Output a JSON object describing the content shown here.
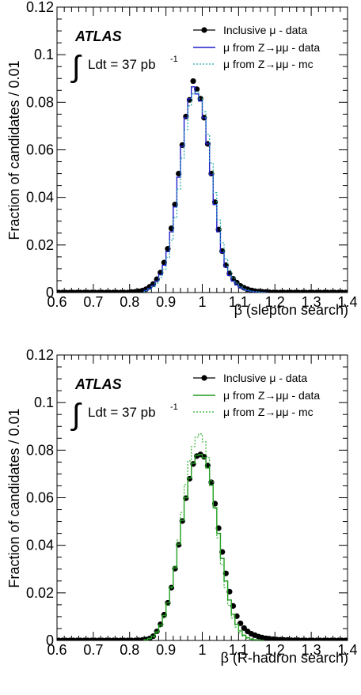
{
  "chart_data": [
    {
      "type": "line",
      "panel": "top",
      "experiment_label": "ATLAS",
      "luminosity_label": "Ldt = 37 pb",
      "luminosity_exponent": "-1",
      "xlabel": "β (slepton search)",
      "ylabel": "Fraction of candidates / 0.01",
      "xlim": [
        0.6,
        1.4
      ],
      "ylim": [
        0,
        0.12
      ],
      "x_ticks": [
        "0.6",
        "0.7",
        "0.8",
        "0.9",
        "1",
        "1.1",
        "1.2",
        "1.3",
        "1.4"
      ],
      "y_ticks": [
        "0",
        "0.02",
        "0.04",
        "0.06",
        "0.08",
        "0.1",
        "0.12"
      ],
      "legend_position": "top-right",
      "series": [
        {
          "name": "Inclusive μ - data",
          "style": "markers",
          "color": "#000000",
          "x": [
            0.605,
            0.615,
            0.625,
            0.635,
            0.645,
            0.655,
            0.665,
            0.675,
            0.685,
            0.695,
            0.705,
            0.715,
            0.725,
            0.735,
            0.745,
            0.755,
            0.765,
            0.775,
            0.785,
            0.795,
            0.805,
            0.815,
            0.825,
            0.835,
            0.845,
            0.855,
            0.865,
            0.875,
            0.885,
            0.895,
            0.905,
            0.915,
            0.925,
            0.935,
            0.945,
            0.955,
            0.965,
            0.975,
            0.985,
            0.995,
            1.005,
            1.015,
            1.025,
            1.035,
            1.045,
            1.055,
            1.065,
            1.075,
            1.085,
            1.095,
            1.105,
            1.115,
            1.125,
            1.135,
            1.145,
            1.155,
            1.165,
            1.175,
            1.185,
            1.195,
            1.205,
            1.215,
            1.225,
            1.235,
            1.245,
            1.255,
            1.265,
            1.275,
            1.285,
            1.295,
            1.305,
            1.315,
            1.325,
            1.335,
            1.345,
            1.355,
            1.365,
            1.375,
            1.385,
            1.395
          ],
          "values": [
            0,
            0,
            0,
            0,
            0,
            0,
            0,
            0,
            0,
            0,
            0,
            0,
            0,
            0,
            0,
            0,
            0,
            0,
            0,
            0,
            0.0002,
            0.0003,
            0.0005,
            0.0008,
            0.0014,
            0.0024,
            0.0036,
            0.0056,
            0.0084,
            0.0126,
            0.0184,
            0.027,
            0.037,
            0.05,
            0.062,
            0.074,
            0.081,
            0.0889,
            0.0855,
            0.0815,
            0.0735,
            0.0625,
            0.05,
            0.038,
            0.0265,
            0.0174,
            0.0115,
            0.008,
            0.0058,
            0.0042,
            0.0028,
            0.002,
            0.0014,
            0.0009,
            0.0006,
            0.0004,
            0.0003,
            0.0002,
            0.0001,
            0,
            0,
            0,
            0,
            0,
            0,
            0,
            0,
            0,
            0,
            0,
            0,
            0,
            0,
            0,
            0,
            0,
            0,
            0,
            0,
            0
          ]
        },
        {
          "name": "μ from Z→μμ - data",
          "style": "step-solid",
          "color": "#1f1fcc",
          "x": [
            0.845,
            0.855,
            0.865,
            0.875,
            0.885,
            0.895,
            0.905,
            0.915,
            0.925,
            0.935,
            0.945,
            0.955,
            0.965,
            0.975,
            0.985,
            0.995,
            1.005,
            1.015,
            1.025,
            1.035,
            1.045,
            1.055,
            1.065,
            1.075,
            1.085,
            1.095,
            1.105,
            1.115,
            1.125,
            1.135,
            1.145,
            1.155,
            1.165,
            1.175
          ],
          "values": [
            0.0009,
            0.0018,
            0.003,
            0.0048,
            0.0075,
            0.0115,
            0.0172,
            0.0255,
            0.036,
            0.0485,
            0.0615,
            0.0735,
            0.0815,
            0.0865,
            0.0835,
            0.0805,
            0.0735,
            0.0625,
            0.0495,
            0.037,
            0.0255,
            0.0168,
            0.0108,
            0.0072,
            0.0048,
            0.0032,
            0.002,
            0.0013,
            0.0008,
            0.0005,
            0.0003,
            0.0002,
            0.0001,
            0
          ]
        },
        {
          "name": "μ from Z→μμ - mc",
          "style": "step-dotted",
          "color": "#1fa6a6",
          "x": [
            0.845,
            0.855,
            0.865,
            0.875,
            0.885,
            0.895,
            0.905,
            0.915,
            0.925,
            0.935,
            0.945,
            0.955,
            0.965,
            0.975,
            0.985,
            0.995,
            1.005,
            1.015,
            1.025,
            1.035,
            1.045,
            1.055,
            1.065,
            1.075,
            1.085,
            1.095,
            1.105,
            1.115,
            1.125,
            1.135,
            1.145,
            1.155,
            1.165,
            1.175
          ],
          "values": [
            0.0007,
            0.0014,
            0.0025,
            0.004,
            0.0064,
            0.0098,
            0.0148,
            0.022,
            0.0315,
            0.0435,
            0.0565,
            0.0685,
            0.0785,
            0.0835,
            0.0845,
            0.0815,
            0.076,
            0.0665,
            0.0545,
            0.042,
            0.0305,
            0.021,
            0.0142,
            0.0094,
            0.0062,
            0.004,
            0.0026,
            0.0016,
            0.001,
            0.0006,
            0.0004,
            0.0002,
            0.0001,
            0
          ]
        }
      ]
    },
    {
      "type": "line",
      "panel": "bottom",
      "experiment_label": "ATLAS",
      "luminosity_label": "Ldt = 37 pb",
      "luminosity_exponent": "-1",
      "xlabel": "β (R-hadron search)",
      "ylabel": "Fraction of candidates / 0.01",
      "xlim": [
        0.6,
        1.4
      ],
      "ylim": [
        0,
        0.12
      ],
      "x_ticks": [
        "0.6",
        "0.7",
        "0.8",
        "0.9",
        "1",
        "1.1",
        "1.2",
        "1.3",
        "1.4"
      ],
      "y_ticks": [
        "0",
        "0.02",
        "0.04",
        "0.06",
        "0.08",
        "0.1",
        "0.12"
      ],
      "legend_position": "top-right",
      "series": [
        {
          "name": "Inclusive μ - data",
          "style": "markers",
          "color": "#000000",
          "x": [
            0.605,
            0.615,
            0.625,
            0.635,
            0.645,
            0.655,
            0.665,
            0.675,
            0.685,
            0.695,
            0.705,
            0.715,
            0.725,
            0.735,
            0.745,
            0.755,
            0.765,
            0.775,
            0.785,
            0.795,
            0.805,
            0.815,
            0.825,
            0.835,
            0.845,
            0.855,
            0.865,
            0.875,
            0.885,
            0.895,
            0.905,
            0.915,
            0.925,
            0.935,
            0.945,
            0.955,
            0.965,
            0.975,
            0.985,
            0.995,
            1.005,
            1.015,
            1.025,
            1.035,
            1.045,
            1.055,
            1.065,
            1.075,
            1.085,
            1.095,
            1.105,
            1.115,
            1.125,
            1.135,
            1.145,
            1.155,
            1.165,
            1.175,
            1.185,
            1.195,
            1.205,
            1.215,
            1.225,
            1.235,
            1.245,
            1.255,
            1.265,
            1.275,
            1.285,
            1.295,
            1.305,
            1.315,
            1.325,
            1.335,
            1.345,
            1.355,
            1.365,
            1.375,
            1.385,
            1.395
          ],
          "values": [
            0,
            0,
            0,
            0,
            0,
            0,
            0,
            0,
            0,
            0,
            0,
            0,
            0,
            0,
            0,
            0,
            0,
            0,
            0,
            0,
            0,
            0,
            0.0001,
            0.0002,
            0.0004,
            0.0008,
            0.0018,
            0.0038,
            0.0068,
            0.0108,
            0.0158,
            0.0222,
            0.0302,
            0.0402,
            0.0502,
            0.0598,
            0.068,
            0.0742,
            0.0775,
            0.0782,
            0.0772,
            0.0735,
            0.0665,
            0.0575,
            0.0472,
            0.0372,
            0.0282,
            0.0205,
            0.0145,
            0.0102,
            0.0072,
            0.0052,
            0.0038,
            0.0028,
            0.0022,
            0.0016,
            0.0012,
            0.0009,
            0.0007,
            0.0005,
            0.0004,
            0.0003,
            0.0002,
            0.0002,
            0.0001,
            0.0001,
            0.0001,
            0,
            0,
            0,
            0,
            0,
            0,
            0,
            0,
            0,
            0,
            0,
            0,
            0
          ]
        },
        {
          "name": "μ from Z→μμ - data",
          "style": "step-solid",
          "color": "#1f9a1f",
          "x": [
            0.845,
            0.855,
            0.865,
            0.875,
            0.885,
            0.895,
            0.905,
            0.915,
            0.925,
            0.935,
            0.945,
            0.955,
            0.965,
            0.975,
            0.985,
            0.995,
            1.005,
            1.015,
            1.025,
            1.035,
            1.045,
            1.055,
            1.065,
            1.075,
            1.085,
            1.095,
            1.105,
            1.115,
            1.125,
            1.135,
            1.145,
            1.155,
            1.165
          ],
          "values": [
            0.0003,
            0.0008,
            0.0018,
            0.0036,
            0.0065,
            0.0105,
            0.0158,
            0.0225,
            0.0305,
            0.0405,
            0.0505,
            0.06,
            0.0682,
            0.0745,
            0.0778,
            0.0782,
            0.0768,
            0.0725,
            0.0652,
            0.0558,
            0.045,
            0.0345,
            0.025,
            0.017,
            0.011,
            0.0068,
            0.004,
            0.0022,
            0.0012,
            0.0006,
            0.0003,
            0.0001,
            0
          ]
        },
        {
          "name": "μ from Z→μμ - mc",
          "style": "step-dotted",
          "color": "#2fb02f",
          "x": [
            0.845,
            0.855,
            0.865,
            0.875,
            0.885,
            0.895,
            0.905,
            0.915,
            0.925,
            0.935,
            0.945,
            0.955,
            0.965,
            0.975,
            0.985,
            0.995,
            1.005,
            1.015,
            1.025,
            1.035,
            1.045,
            1.055,
            1.065,
            1.075,
            1.085,
            1.095,
            1.105,
            1.115,
            1.125,
            1.135,
            1.145,
            1.155,
            1.165
          ],
          "values": [
            0.0002,
            0.0006,
            0.0014,
            0.003,
            0.0056,
            0.0094,
            0.0148,
            0.022,
            0.0312,
            0.0422,
            0.0538,
            0.0655,
            0.0755,
            0.0815,
            0.0855,
            0.0868,
            0.0835,
            0.0768,
            0.0672,
            0.0555,
            0.0432,
            0.0318,
            0.0222,
            0.0148,
            0.0094,
            0.0056,
            0.0032,
            0.0018,
            0.0009,
            0.0004,
            0.0002,
            0.0001,
            0
          ]
        }
      ]
    }
  ]
}
